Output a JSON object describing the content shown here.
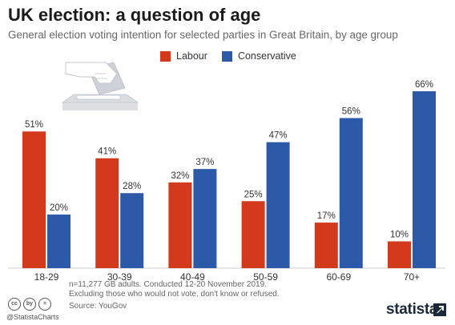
{
  "header": {
    "title": "UK election: a question of age",
    "subtitle": "General election voting intention for selected parties in Great Britain, by age group"
  },
  "legend": [
    {
      "label": "Labour",
      "color": "#d33a1c"
    },
    {
      "label": "Conservative",
      "color": "#2d5aa8"
    }
  ],
  "chart_data": {
    "type": "bar",
    "categories": [
      "18-29",
      "30-39",
      "40-49",
      "50-59",
      "60-69",
      "70+"
    ],
    "series": [
      {
        "name": "Labour",
        "color": "#d33a1c",
        "values": [
          51,
          41,
          32,
          25,
          17,
          10
        ]
      },
      {
        "name": "Conservative",
        "color": "#2d5aa8",
        "values": [
          20,
          28,
          37,
          47,
          56,
          66
        ]
      }
    ],
    "value_suffix": "%",
    "ylim": [
      0,
      66
    ],
    "grid": false,
    "legend_position": "top"
  },
  "footer": {
    "note_line1": "n=11,277 GB adults. Conducted 12-20 November 2019.",
    "note_line2": "Excluding those who would not vote, don't know or refused.",
    "source": "Source: YouGov",
    "handle": "@StatistaCharts",
    "logo": "statista",
    "cc_icons": [
      "cc",
      "by",
      "="
    ]
  }
}
